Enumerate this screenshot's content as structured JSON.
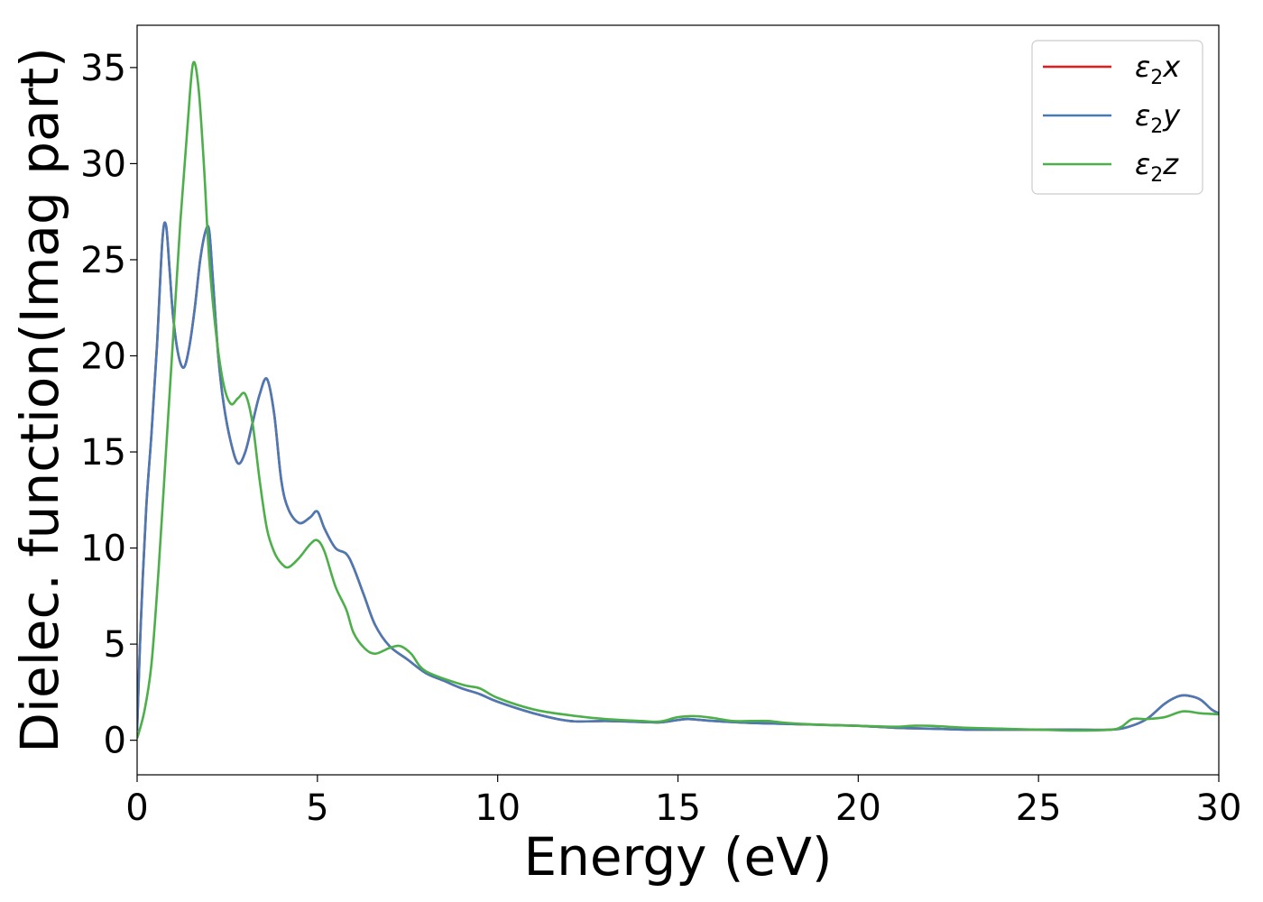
{
  "chart_data": {
    "type": "line",
    "xlabel": "Energy (eV)",
    "ylabel": "Dielec. function(Imag part)",
    "xlim": [
      0,
      30
    ],
    "ylim": [
      -1.8,
      37.2
    ],
    "xticks": [
      0,
      5,
      10,
      15,
      20,
      25,
      30
    ],
    "yticks": [
      0,
      5,
      10,
      15,
      20,
      25,
      30,
      35
    ],
    "grid": false,
    "legend_position": "top-right",
    "series": [
      {
        "name": "ε₂x",
        "legend_base": "ε",
        "legend_sub": "2",
        "legend_suffix": "x",
        "color": "#e41a1c",
        "x": [
          0,
          0.1,
          0.25,
          0.4,
          0.55,
          0.7,
          0.8,
          0.9,
          1.0,
          1.15,
          1.3,
          1.45,
          1.6,
          1.75,
          1.9,
          2.0,
          2.1,
          2.25,
          2.4,
          2.6,
          2.8,
          3.0,
          3.2,
          3.4,
          3.6,
          3.8,
          4.0,
          4.2,
          4.5,
          4.8,
          5.0,
          5.2,
          5.5,
          5.8,
          6.0,
          6.3,
          6.6,
          7.0,
          7.5,
          8.0,
          8.5,
          9.0,
          9.5,
          10.0,
          11.0,
          12.0,
          13.0,
          14.0,
          14.5,
          15.0,
          15.3,
          16.0,
          17.0,
          18.0,
          19.0,
          20.0,
          21.0,
          22.0,
          23.0,
          24.0,
          25.0,
          26.0,
          27.0,
          27.5,
          28.0,
          28.5,
          28.9,
          29.2,
          29.5,
          29.8,
          30.0
        ],
        "values": [
          0.5,
          6,
          12,
          16,
          20.5,
          26,
          26.8,
          24.5,
          22,
          20,
          19.4,
          20.5,
          22.5,
          25,
          26.5,
          26.5,
          24,
          20,
          17.5,
          15.5,
          14.4,
          15,
          16.5,
          18,
          18.8,
          17,
          13.5,
          12,
          11.3,
          11.6,
          11.9,
          11,
          10,
          9.7,
          9,
          7.5,
          6,
          4.9,
          4.2,
          3.5,
          3.1,
          2.7,
          2.4,
          2.0,
          1.4,
          1.0,
          1.0,
          0.95,
          0.93,
          1.05,
          1.1,
          1.0,
          0.9,
          0.85,
          0.8,
          0.75,
          0.65,
          0.6,
          0.55,
          0.55,
          0.55,
          0.55,
          0.55,
          0.7,
          1.1,
          1.9,
          2.3,
          2.3,
          2.1,
          1.6,
          1.4
        ]
      },
      {
        "name": "ε₂y",
        "legend_base": "ε",
        "legend_sub": "2",
        "legend_suffix": "y",
        "color": "#4a7ab5",
        "x": [
          0,
          0.1,
          0.25,
          0.4,
          0.55,
          0.7,
          0.8,
          0.9,
          1.0,
          1.15,
          1.3,
          1.45,
          1.6,
          1.75,
          1.9,
          2.0,
          2.1,
          2.25,
          2.4,
          2.6,
          2.8,
          3.0,
          3.2,
          3.4,
          3.6,
          3.8,
          4.0,
          4.2,
          4.5,
          4.8,
          5.0,
          5.2,
          5.5,
          5.8,
          6.0,
          6.3,
          6.6,
          7.0,
          7.5,
          8.0,
          8.5,
          9.0,
          9.5,
          10.0,
          11.0,
          12.0,
          13.0,
          14.0,
          14.5,
          15.0,
          15.3,
          16.0,
          17.0,
          18.0,
          19.0,
          20.0,
          21.0,
          22.0,
          23.0,
          24.0,
          25.0,
          26.0,
          27.0,
          27.5,
          28.0,
          28.5,
          28.9,
          29.2,
          29.5,
          29.8,
          30.0
        ],
        "values": [
          0.5,
          6,
          12,
          16,
          20.5,
          26,
          26.8,
          24.5,
          22,
          20,
          19.4,
          20.5,
          22.5,
          25,
          26.5,
          26.5,
          24,
          20,
          17.5,
          15.5,
          14.4,
          15,
          16.5,
          18,
          18.8,
          17,
          13.5,
          12,
          11.3,
          11.6,
          11.9,
          11,
          10,
          9.7,
          9,
          7.5,
          6,
          4.9,
          4.2,
          3.5,
          3.1,
          2.7,
          2.4,
          2.0,
          1.4,
          1.0,
          1.0,
          0.95,
          0.93,
          1.05,
          1.1,
          1.0,
          0.9,
          0.85,
          0.8,
          0.75,
          0.65,
          0.6,
          0.55,
          0.55,
          0.55,
          0.55,
          0.55,
          0.7,
          1.1,
          1.9,
          2.3,
          2.3,
          2.1,
          1.6,
          1.4
        ]
      },
      {
        "name": "ε₂z",
        "legend_base": "ε",
        "legend_sub": "2",
        "legend_suffix": "z",
        "color": "#4daf4a",
        "x": [
          0,
          0.2,
          0.4,
          0.6,
          0.8,
          1.0,
          1.2,
          1.4,
          1.55,
          1.7,
          1.85,
          2.0,
          2.2,
          2.4,
          2.6,
          2.8,
          3.0,
          3.2,
          3.4,
          3.6,
          3.8,
          4.0,
          4.2,
          4.5,
          4.8,
          5.0,
          5.2,
          5.5,
          5.8,
          6.0,
          6.3,
          6.6,
          7.0,
          7.3,
          7.6,
          8.0,
          9.0,
          9.5,
          10.0,
          11.0,
          12.0,
          13.0,
          14.0,
          14.5,
          15.0,
          15.5,
          16.0,
          16.5,
          17.0,
          17.5,
          18.0,
          19.0,
          20.0,
          21.0,
          21.5,
          22.0,
          23.0,
          24.0,
          25.0,
          26.0,
          27.0,
          27.3,
          27.6,
          28.0,
          28.5,
          29.0,
          29.5,
          30.0
        ],
        "values": [
          0.1,
          1.5,
          4,
          9,
          15,
          21,
          27,
          32,
          35.2,
          34,
          30,
          25,
          21,
          18.5,
          17.5,
          17.8,
          18,
          16.5,
          13.5,
          11,
          9.8,
          9.2,
          9.0,
          9.5,
          10.2,
          10.4,
          9.8,
          8.0,
          6.8,
          5.6,
          4.8,
          4.5,
          4.8,
          4.9,
          4.5,
          3.6,
          2.9,
          2.7,
          2.2,
          1.6,
          1.3,
          1.1,
          1.0,
          0.97,
          1.2,
          1.25,
          1.15,
          1.0,
          1.0,
          1.0,
          0.9,
          0.8,
          0.75,
          0.7,
          0.75,
          0.75,
          0.65,
          0.6,
          0.55,
          0.5,
          0.55,
          0.7,
          1.1,
          1.1,
          1.2,
          1.5,
          1.4,
          1.35
        ]
      }
    ]
  }
}
